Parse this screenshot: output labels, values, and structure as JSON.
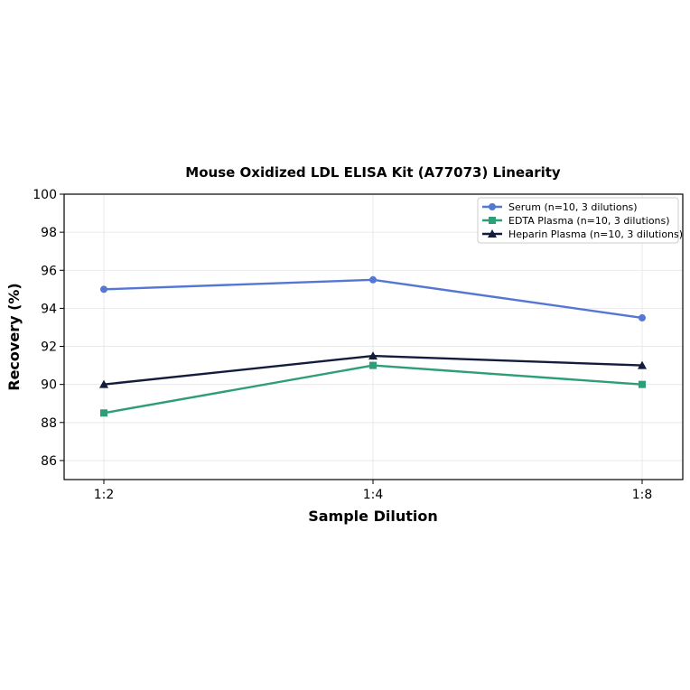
{
  "chart_data": {
    "type": "line",
    "title": "Mouse Oxidized LDL ELISA Kit (A77073) Linearity",
    "xlabel": "Sample Dilution",
    "ylabel": "Recovery (%)",
    "categories": [
      "1:2",
      "1:4",
      "1:8"
    ],
    "ylim": [
      85,
      100
    ],
    "yticks": [
      86,
      88,
      90,
      92,
      94,
      96,
      98,
      100
    ],
    "grid": true,
    "legend_position": "top-right",
    "series": [
      {
        "name": "Serum (n=10, 3 dilutions)",
        "values": [
          95.0,
          95.5,
          93.5
        ],
        "color": "#5577d4",
        "marker": "circle"
      },
      {
        "name": "EDTA Plasma (n=10, 3 dilutions)",
        "values": [
          88.5,
          91.0,
          90.0
        ],
        "color": "#2e9e77",
        "marker": "square"
      },
      {
        "name": "Heparin Plasma (n=10, 3 dilutions)",
        "values": [
          90.0,
          91.5,
          91.0
        ],
        "color": "#141c3d",
        "marker": "triangle"
      }
    ]
  }
}
